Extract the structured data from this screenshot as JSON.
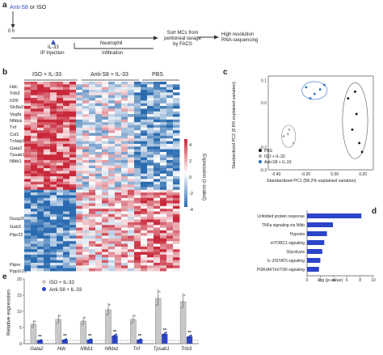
{
  "panel_a": {
    "label": "a",
    "treatment_antibody": "Anti-S8",
    "treatment_or": "or",
    "treatment_iso": "ISO",
    "time_zero": "0 h",
    "il33_line1": "IL-33",
    "il33_line2": "IP Injection",
    "neutrophil_line1": "Neutrophil",
    "neutrophil_line2": "Infiltration",
    "sort_line1": "Sort MCs from",
    "sort_line2": "peritoneal lavage",
    "sort_line3": "by FACS",
    "seq_line1": "High resolution",
    "seq_line2": "RNA-sequencing",
    "colors": {
      "antibody": "#2f4fbf",
      "arrow": "#333333"
    }
  },
  "panel_b": {
    "label": "b",
    "groups": [
      "ISO + IL-33",
      "Anti-S8 + IL-33",
      "PBS"
    ],
    "genes_top": [
      "Hdc",
      "Trib3",
      "Il1f9",
      "Slc8a19",
      "Vegfa",
      "Nfkbiz",
      "Tnf",
      "Csf1",
      "Tnfaip3",
      "Gata2",
      "Tpsab1",
      "Nfkb1"
    ],
    "genes_mid": [
      "Dusp28",
      "Gab3",
      "Ptpr22"
    ],
    "genes_bottom": [
      "Ptpro",
      "Ppp1r21"
    ],
    "colorbar": {
      "title": "Expression (z-scaled)",
      "ticks": [
        "4",
        "2",
        "0",
        "-2",
        "-4"
      ],
      "colors": {
        "high": "#c8283a",
        "mid": "#ffffff",
        "low": "#2a6bb0"
      }
    }
  },
  "panel_c": {
    "label": "c",
    "ylabel": "Standardized PC2 (8.8% explained variation)",
    "xlabel": "Standardized PC1 (58.2% explained variation)",
    "xticks": [
      "-0.40",
      "-0.20",
      "0.00",
      "0.20"
    ],
    "yticks": [
      "0.1",
      "0.0",
      "-0.2",
      "-0.3"
    ],
    "legend": [
      {
        "label": "PBS",
        "color": "#111111"
      },
      {
        "label": "ISO + IL-33",
        "color": "#aaaaaa"
      },
      {
        "label": "Anti-S8 + IL-33",
        "color": "#2a6fc4"
      }
    ]
  },
  "panel_d": {
    "label": "d",
    "xlabel": "-log (p-value)",
    "xticks": [
      "0",
      "2",
      "4",
      "6",
      "8",
      "10"
    ],
    "bar_color": "#2b44c9"
  },
  "panel_e": {
    "label": "e",
    "ylabel": "Relative expression",
    "yticks": [
      "0",
      "5",
      "10",
      "15",
      "20"
    ],
    "legend": [
      {
        "label": "ISO + IL-33",
        "color": "#c8c8c8"
      },
      {
        "label": "Anti-S8 + IL-33",
        "color": "#2b44c9"
      }
    ],
    "significance": "**"
  },
  "chart_data": [
    {
      "type": "bar",
      "panel": "d",
      "categories": [
        "Unfolded protein response",
        "TNFa signaling via Nfkb",
        "Hypoxia",
        "mTORC1 signaling",
        "Glycolysis",
        "IL-2/STAT5 signaling",
        "PI3K/AKT/mTOR signaling"
      ],
      "values": [
        8.2,
        3.9,
        3.0,
        2.6,
        2.3,
        2.0,
        1.8
      ],
      "xlabel": "-log (p-value)",
      "xlim": [
        0,
        10
      ],
      "orientation": "horizontal"
    },
    {
      "type": "bar",
      "panel": "e",
      "categories": [
        "Gata2",
        "Hdc",
        "Nfkb1",
        "Nfkbiz",
        "Tnf",
        "Tpsab1",
        "Trib3"
      ],
      "series": [
        {
          "name": "ISO + IL-33",
          "values": [
            6.0,
            7.5,
            7.0,
            10.5,
            7.5,
            14.0,
            13.0
          ]
        },
        {
          "name": "Anti-S8 + IL-33",
          "values": [
            1.0,
            1.2,
            1.2,
            2.5,
            1.2,
            3.0,
            2.2
          ]
        }
      ],
      "ylabel": "Relative expression",
      "ylim": [
        0,
        20
      ],
      "baseline": 1
    },
    {
      "type": "scatter",
      "panel": "c",
      "series": [
        {
          "name": "PBS",
          "x": [
            0.12,
            0.18,
            0.15,
            0.2,
            0.22,
            0.17
          ],
          "y": [
            0.02,
            -0.05,
            -0.12,
            -0.18,
            -0.22,
            0.05
          ]
        },
        {
          "name": "ISO + IL-33",
          "x": [
            -0.34,
            -0.3,
            -0.27,
            -0.31
          ],
          "y": [
            -0.15,
            -0.12,
            -0.18,
            -0.14
          ]
        },
        {
          "name": "Anti-S8 + IL-33",
          "x": [
            -0.18,
            -0.12,
            -0.08,
            -0.15,
            -0.05
          ],
          "y": [
            0.07,
            0.04,
            0.06,
            0.02,
            0.08
          ]
        }
      ],
      "xlabel": "Standardized PC1 (58.2% explained variation)",
      "ylabel": "Standardized PC2 (8.8% explained variation)",
      "xlim": [
        -0.45,
        0.3
      ],
      "ylim": [
        -0.3,
        0.12
      ]
    },
    {
      "type": "heatmap",
      "panel": "b",
      "groups": [
        "ISO + IL-33",
        "Anti-S8 + IL-33",
        "PBS"
      ],
      "scale": [
        -4,
        4
      ]
    }
  ]
}
